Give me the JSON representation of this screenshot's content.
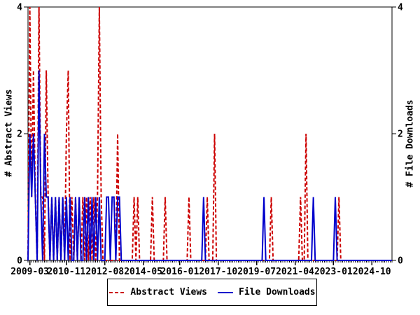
{
  "chart_data": {
    "type": "line",
    "title": "",
    "x_start_month": "2009-02",
    "months_total": 200,
    "x_tick_labels": [
      "2009-03",
      "2010-11",
      "2012-08",
      "2014-05",
      "2016-01",
      "2017-10",
      "2019-07",
      "2021-04",
      "2023-01",
      "2024-10"
    ],
    "x_tick_month_indices": [
      1,
      21,
      42,
      63,
      83,
      104,
      125,
      146,
      167,
      188
    ],
    "y_left_label": "# Abstract Views",
    "y_right_label": "# File Downloads",
    "y_ticks": [
      0,
      2,
      4
    ],
    "ylim": [
      0,
      4
    ],
    "grid": false,
    "legend_position": "bottom-center",
    "series": [
      {
        "name": "Abstract Views",
        "color": "#cc0000",
        "style": "dashed",
        "axis": "left",
        "values": [
          0,
          4,
          1,
          3,
          1,
          0,
          4,
          1,
          1,
          0,
          3,
          1,
          0,
          1,
          0,
          1,
          0,
          1,
          0,
          1,
          0,
          2,
          3,
          0,
          1,
          0,
          1,
          0,
          1,
          0,
          1,
          0,
          1,
          0,
          1,
          0,
          1,
          0,
          1,
          4,
          1,
          0,
          0,
          0,
          0,
          0,
          0,
          0,
          0,
          2,
          0,
          0,
          0,
          0,
          0,
          0,
          0,
          0,
          1,
          0,
          1,
          0,
          0,
          0,
          0,
          0,
          0,
          0,
          1,
          0,
          0,
          0,
          0,
          0,
          0,
          1,
          0,
          0,
          0,
          0,
          0,
          0,
          0,
          0,
          0,
          0,
          0,
          0,
          1,
          0,
          0,
          0,
          0,
          0,
          0,
          0,
          0,
          0,
          1,
          0,
          0,
          0,
          2,
          0,
          0,
          0,
          0,
          0,
          0,
          0,
          0,
          0,
          0,
          0,
          0,
          0,
          0,
          0,
          0,
          0,
          0,
          0,
          0,
          0,
          0,
          0,
          0,
          0,
          0,
          0,
          0,
          0,
          0,
          1,
          0,
          0,
          0,
          0,
          0,
          0,
          0,
          0,
          0,
          0,
          0,
          0,
          0,
          0,
          0,
          1,
          0,
          0,
          2,
          0,
          0,
          0,
          0,
          0,
          0,
          0,
          0,
          0,
          0,
          0,
          0,
          0,
          0,
          0,
          0,
          0,
          1,
          0,
          0,
          0,
          0,
          0,
          0,
          0,
          0,
          0,
          0,
          0,
          0,
          0,
          0,
          0,
          0,
          0,
          0,
          0,
          0,
          0,
          0,
          0,
          0,
          0,
          0,
          0,
          0,
          0
        ]
      },
      {
        "name": "File Downloads",
        "color": "#0000cc",
        "style": "solid",
        "axis": "right",
        "values": [
          0,
          2,
          1,
          2,
          1,
          0,
          3,
          1,
          0,
          2,
          1,
          1,
          0,
          1,
          0,
          1,
          0,
          1,
          0,
          1,
          0,
          1,
          0,
          1,
          0,
          0,
          1,
          0,
          1,
          0,
          0,
          1,
          0,
          1,
          0,
          1,
          0,
          1,
          0,
          1,
          0,
          0,
          0,
          1,
          1,
          0,
          1,
          1,
          0,
          1,
          1,
          0,
          0,
          0,
          0,
          0,
          0,
          0,
          0,
          0,
          0,
          0,
          0,
          0,
          0,
          0,
          0,
          0,
          0,
          0,
          0,
          0,
          0,
          0,
          0,
          0,
          0,
          0,
          0,
          0,
          0,
          0,
          0,
          0,
          0,
          0,
          0,
          0,
          0,
          0,
          0,
          0,
          0,
          0,
          0,
          0,
          1,
          0,
          0,
          0,
          0,
          0,
          0,
          0,
          0,
          0,
          0,
          0,
          0,
          0,
          0,
          0,
          0,
          0,
          0,
          0,
          0,
          0,
          0,
          0,
          0,
          0,
          0,
          0,
          0,
          0,
          0,
          0,
          0,
          1,
          0,
          0,
          0,
          0,
          0,
          0,
          0,
          0,
          0,
          0,
          0,
          0,
          0,
          0,
          0,
          0,
          0,
          0,
          0,
          0,
          0,
          0,
          0,
          0,
          0,
          0,
          1,
          0,
          0,
          0,
          0,
          0,
          0,
          0,
          0,
          0,
          0,
          0,
          1,
          0,
          0,
          0,
          0,
          0,
          0,
          0,
          0,
          0,
          0,
          0,
          0,
          0,
          0,
          0,
          0,
          0,
          0,
          0,
          0,
          0,
          0,
          0,
          0,
          0,
          0,
          0,
          0,
          0,
          0,
          0
        ]
      }
    ]
  },
  "legend": {
    "items": [
      {
        "label": "Abstract Views",
        "swatch": "dashed-red-line"
      },
      {
        "label": "File Downloads",
        "swatch": "solid-blue-line"
      }
    ]
  },
  "colors": {
    "abstract_views": "#cc0000",
    "file_downloads": "#0000cc",
    "axis": "#000000",
    "background": "#ffffff"
  }
}
